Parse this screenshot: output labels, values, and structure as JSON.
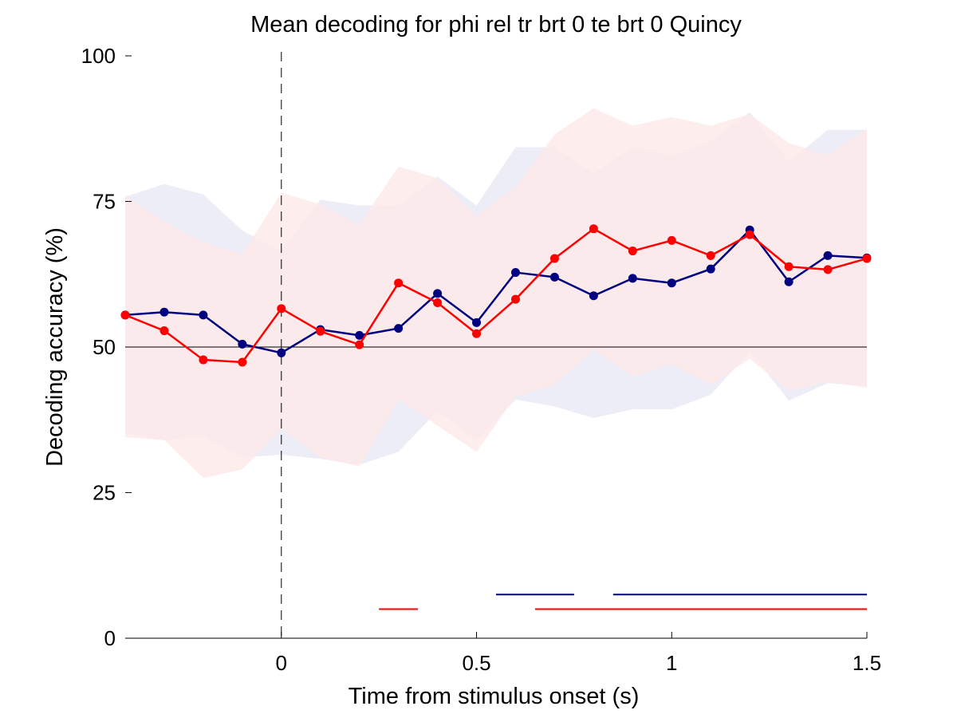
{
  "chart_data": {
    "type": "line",
    "title": "Mean decoding for phi rel tr brt 0 te brt 0  Quincy",
    "xlabel": "Time from stimulus onset (s)",
    "ylabel": "Decoding accuracy (%)",
    "xlim": [
      -0.4,
      1.5
    ],
    "ylim": [
      0,
      100
    ],
    "x_ticks": [
      0,
      0.5,
      1,
      1.5
    ],
    "x_tick_labels": [
      "0",
      "0.5",
      "1",
      "1.5"
    ],
    "y_ticks": [
      0,
      25,
      50,
      75,
      100
    ],
    "y_tick_labels": [
      "0",
      "25",
      "50",
      "75",
      "100"
    ],
    "chance_level": 50,
    "stimulus_onset": 0,
    "grid": false,
    "legend": "none",
    "x": [
      -0.4,
      -0.3,
      -0.2,
      -0.1,
      0.0,
      0.1,
      0.2,
      0.3,
      0.4,
      0.5,
      0.6,
      0.7,
      0.8,
      0.9,
      1.0,
      1.1,
      1.2,
      1.3,
      1.4,
      1.5
    ],
    "series": [
      {
        "color": "#000080",
        "band_color": "#e8e8f6",
        "values": [
          55.5,
          56.0,
          55.5,
          50.5,
          49.0,
          53.0,
          52.0,
          53.2,
          59.2,
          54.2,
          62.8,
          62.0,
          58.8,
          61.8,
          61.0,
          63.4,
          70.1,
          61.2,
          65.7,
          65.3
        ],
        "upper": [
          75.8,
          78.0,
          76.2,
          70.0,
          66.5,
          75.3,
          74.3,
          74.3,
          79.3,
          74.3,
          84.3,
          84.3,
          79.8,
          84.3,
          82.8,
          85.3,
          90.3,
          81.8,
          87.3,
          87.3
        ],
        "lower": [
          35.2,
          34.0,
          34.8,
          31.0,
          31.5,
          30.8,
          29.8,
          32.0,
          39.0,
          34.0,
          41.0,
          39.8,
          37.8,
          39.3,
          39.3,
          41.8,
          49.3,
          40.8,
          43.8,
          43.3
        ],
        "significant_segments": [
          [
            0.55,
            0.75
          ],
          [
            0.85,
            1.5
          ]
        ],
        "significance_y": 7.5
      },
      {
        "color": "#ff0000",
        "band_color": "#fde8e8",
        "values": [
          55.5,
          52.8,
          47.8,
          47.4,
          56.6,
          52.7,
          50.4,
          61.0,
          57.6,
          52.3,
          58.2,
          65.2,
          70.3,
          66.5,
          68.3,
          65.7,
          69.3,
          63.8,
          63.3,
          65.2
        ],
        "upper": [
          76.0,
          71.5,
          68.0,
          66.0,
          76.5,
          74.5,
          71.0,
          81.0,
          79.0,
          72.5,
          77.5,
          86.5,
          91.0,
          88.0,
          89.5,
          88.0,
          90.0,
          85.0,
          83.0,
          87.5
        ],
        "lower": [
          34.5,
          34.0,
          27.5,
          29.0,
          36.0,
          31.0,
          29.5,
          41.0,
          36.5,
          32.0,
          41.5,
          43.5,
          49.5,
          45.0,
          47.0,
          43.5,
          48.0,
          42.5,
          44.0,
          43.0
        ],
        "significant_segments": [
          [
            0.25,
            0.35
          ],
          [
            0.65,
            1.5
          ]
        ],
        "significance_y": 5.0
      }
    ]
  }
}
